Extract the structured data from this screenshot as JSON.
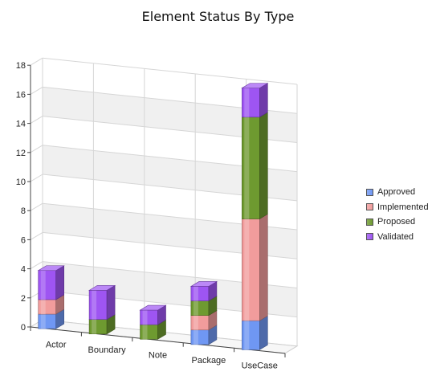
{
  "chart_data": {
    "type": "bar",
    "stacked": true,
    "three_d": true,
    "title": "Element Status By Type",
    "xlabel": "",
    "ylabel": "",
    "categories": [
      "Actor",
      "Boundary",
      "Note",
      "Package",
      "UseCase"
    ],
    "ylim": [
      0,
      18
    ],
    "yticks": [
      0,
      2,
      4,
      6,
      8,
      10,
      12,
      14,
      16,
      18
    ],
    "grid": true,
    "legend_position": "right",
    "series": [
      {
        "name": "Approved",
        "color": "#6f97f3",
        "values": [
          1,
          0,
          0,
          1,
          2
        ]
      },
      {
        "name": "Implemented",
        "color": "#f19c9c",
        "values": [
          1,
          0,
          0,
          1,
          7
        ]
      },
      {
        "name": "Proposed",
        "color": "#6e9a30",
        "values": [
          0,
          1,
          1,
          1,
          7
        ]
      },
      {
        "name": "Validated",
        "color": "#9e55f2",
        "values": [
          2,
          2,
          1,
          1,
          2
        ]
      }
    ]
  }
}
